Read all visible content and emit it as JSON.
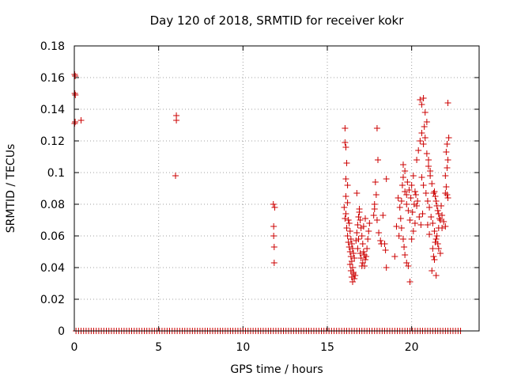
{
  "chart_data": {
    "type": "scatter",
    "title": "Day 120 of 2018, SRMTID for receiver kokr",
    "xlabel": "GPS time / hours",
    "ylabel": "SRMTID / TECUs",
    "xlim": [
      0,
      24
    ],
    "ylim": [
      0,
      0.18
    ],
    "xticks": [
      0,
      5,
      10,
      15,
      20
    ],
    "yticks": [
      0,
      0.02,
      0.04,
      0.06,
      0.08,
      0.1,
      0.12,
      0.14,
      0.16,
      0.18
    ],
    "xtick_labels": [
      "0",
      "5",
      "10",
      "15",
      "20"
    ],
    "ytick_labels": [
      "0",
      "0.02",
      "0.04",
      "0.06",
      "0.08",
      "0.1",
      "0.12",
      "0.14",
      "0.16",
      "0.18"
    ],
    "grid": true,
    "marker": "+",
    "series": [
      {
        "name": "SRMTID",
        "color": "#cc0000",
        "points": [
          [
            0.02,
            0.162
          ],
          [
            0.05,
            0.161
          ],
          [
            0.03,
            0.15
          ],
          [
            0.06,
            0.149
          ],
          [
            0.02,
            0.131
          ],
          [
            0.05,
            0.132
          ],
          [
            0.4,
            0.133
          ],
          [
            6.05,
            0.136
          ],
          [
            6.05,
            0.133
          ],
          [
            6.0,
            0.098
          ],
          [
            11.8,
            0.08
          ],
          [
            11.88,
            0.078
          ],
          [
            11.82,
            0.066
          ],
          [
            11.82,
            0.06
          ],
          [
            11.85,
            0.053
          ],
          [
            11.85,
            0.043
          ],
          [
            16.05,
            0.128
          ],
          [
            16.05,
            0.119
          ],
          [
            16.1,
            0.116
          ],
          [
            16.15,
            0.106
          ],
          [
            16.1,
            0.096
          ],
          [
            16.2,
            0.092
          ],
          [
            16.1,
            0.085
          ],
          [
            16.2,
            0.081
          ],
          [
            16.0,
            0.078
          ],
          [
            16.1,
            0.074
          ],
          [
            16.05,
            0.071
          ],
          [
            16.25,
            0.07
          ],
          [
            16.3,
            0.068
          ],
          [
            16.15,
            0.065
          ],
          [
            16.35,
            0.063
          ],
          [
            16.2,
            0.06
          ],
          [
            16.4,
            0.058
          ],
          [
            16.25,
            0.056
          ],
          [
            16.45,
            0.055
          ],
          [
            16.3,
            0.053
          ],
          [
            16.5,
            0.052
          ],
          [
            16.35,
            0.05
          ],
          [
            16.55,
            0.049
          ],
          [
            16.4,
            0.047
          ],
          [
            16.6,
            0.046
          ],
          [
            16.45,
            0.044
          ],
          [
            16.35,
            0.042
          ],
          [
            16.5,
            0.04
          ],
          [
            16.4,
            0.038
          ],
          [
            16.55,
            0.036
          ],
          [
            16.45,
            0.034
          ],
          [
            16.6,
            0.033
          ],
          [
            16.5,
            0.031
          ],
          [
            16.65,
            0.035
          ],
          [
            16.55,
            0.037
          ],
          [
            16.7,
            0.057
          ],
          [
            16.75,
            0.062
          ],
          [
            16.8,
            0.067
          ],
          [
            16.85,
            0.072
          ],
          [
            16.9,
            0.075
          ],
          [
            16.95,
            0.07
          ],
          [
            17.0,
            0.065
          ],
          [
            17.05,
            0.06
          ],
          [
            17.1,
            0.055
          ],
          [
            17.15,
            0.05
          ],
          [
            17.2,
            0.048
          ],
          [
            17.25,
            0.045
          ],
          [
            17.3,
            0.047
          ],
          [
            17.35,
            0.052
          ],
          [
            17.0,
            0.046
          ],
          [
            17.1,
            0.043
          ],
          [
            17.2,
            0.041
          ],
          [
            16.75,
            0.087
          ],
          [
            16.9,
            0.077
          ],
          [
            17.4,
            0.058
          ],
          [
            17.45,
            0.063
          ],
          [
            17.5,
            0.068
          ],
          [
            16.8,
            0.052
          ],
          [
            16.95,
            0.049
          ],
          [
            17.05,
            0.041
          ],
          [
            16.85,
            0.058
          ],
          [
            17.15,
            0.066
          ],
          [
            17.25,
            0.071
          ],
          [
            17.95,
            0.128
          ],
          [
            18.0,
            0.108
          ],
          [
            17.85,
            0.094
          ],
          [
            17.9,
            0.086
          ],
          [
            17.8,
            0.08
          ],
          [
            17.75,
            0.073
          ],
          [
            17.95,
            0.07
          ],
          [
            18.05,
            0.062
          ],
          [
            18.15,
            0.057
          ],
          [
            18.2,
            0.055
          ],
          [
            17.8,
            0.077
          ],
          [
            18.3,
            0.073
          ],
          [
            18.5,
            0.096
          ],
          [
            18.45,
            0.051
          ],
          [
            18.5,
            0.04
          ],
          [
            18.4,
            0.055
          ],
          [
            19.0,
            0.047
          ],
          [
            19.1,
            0.066
          ],
          [
            19.2,
            0.084
          ],
          [
            19.3,
            0.078
          ],
          [
            19.4,
            0.082
          ],
          [
            19.5,
            0.097
          ],
          [
            19.6,
            0.088
          ],
          [
            19.7,
            0.08
          ],
          [
            19.8,
            0.076
          ],
          [
            19.9,
            0.07
          ],
          [
            20.0,
            0.092
          ],
          [
            20.1,
            0.098
          ],
          [
            20.2,
            0.088
          ],
          [
            20.3,
            0.079
          ],
          [
            19.5,
            0.105
          ],
          [
            19.6,
            0.101
          ],
          [
            19.45,
            0.092
          ],
          [
            19.7,
            0.086
          ],
          [
            19.35,
            0.071
          ],
          [
            19.4,
            0.065
          ],
          [
            19.25,
            0.06
          ],
          [
            19.5,
            0.058
          ],
          [
            19.55,
            0.053
          ],
          [
            19.6,
            0.048
          ],
          [
            19.7,
            0.043
          ],
          [
            19.8,
            0.041
          ],
          [
            19.9,
            0.031
          ],
          [
            20.0,
            0.058
          ],
          [
            20.1,
            0.063
          ],
          [
            20.2,
            0.068
          ],
          [
            20.3,
            0.108
          ],
          [
            20.4,
            0.114
          ],
          [
            20.5,
            0.12
          ],
          [
            20.6,
            0.125
          ],
          [
            20.7,
            0.118
          ],
          [
            20.5,
            0.146
          ],
          [
            20.6,
            0.143
          ],
          [
            20.7,
            0.147
          ],
          [
            20.8,
            0.138
          ],
          [
            20.9,
            0.132
          ],
          [
            20.75,
            0.129
          ],
          [
            20.8,
            0.122
          ],
          [
            20.9,
            0.112
          ],
          [
            21.0,
            0.104
          ],
          [
            21.1,
            0.098
          ],
          [
            21.2,
            0.093
          ],
          [
            21.3,
            0.087
          ],
          [
            21.4,
            0.085
          ],
          [
            21.5,
            0.079
          ],
          [
            21.6,
            0.074
          ],
          [
            21.7,
            0.07
          ],
          [
            20.6,
            0.097
          ],
          [
            20.7,
            0.092
          ],
          [
            20.85,
            0.087
          ],
          [
            20.95,
            0.082
          ],
          [
            21.05,
            0.078
          ],
          [
            21.15,
            0.072
          ],
          [
            21.25,
            0.068
          ],
          [
            21.35,
            0.063
          ],
          [
            21.45,
            0.058
          ],
          [
            21.55,
            0.055
          ],
          [
            21.6,
            0.052
          ],
          [
            21.7,
            0.049
          ],
          [
            21.25,
            0.052
          ],
          [
            21.3,
            0.047
          ],
          [
            21.35,
            0.045
          ],
          [
            21.2,
            0.038
          ],
          [
            21.45,
            0.035
          ],
          [
            21.8,
            0.065
          ],
          [
            21.9,
            0.069
          ],
          [
            22.0,
            0.087
          ],
          [
            22.05,
            0.091
          ],
          [
            22.1,
            0.086
          ],
          [
            22.15,
            0.084
          ],
          [
            22.0,
            0.098
          ],
          [
            22.1,
            0.103
          ],
          [
            22.15,
            0.108
          ],
          [
            22.05,
            0.113
          ],
          [
            22.1,
            0.118
          ],
          [
            22.2,
            0.122
          ],
          [
            22.15,
            0.144
          ],
          [
            22.0,
            0.066
          ],
          [
            21.8,
            0.073
          ],
          [
            21.75,
            0.079
          ],
          [
            20.45,
            0.072
          ],
          [
            20.55,
            0.067
          ],
          [
            20.65,
            0.074
          ],
          [
            20.35,
            0.082
          ],
          [
            20.25,
            0.086
          ],
          [
            20.15,
            0.08
          ],
          [
            20.05,
            0.075
          ],
          [
            19.95,
            0.084
          ],
          [
            19.85,
            0.089
          ],
          [
            19.75,
            0.094
          ],
          [
            21.0,
            0.108
          ],
          [
            21.1,
            0.101
          ],
          [
            20.95,
            0.067
          ],
          [
            21.05,
            0.061
          ],
          [
            21.4,
            0.056
          ],
          [
            21.5,
            0.06
          ],
          [
            21.6,
            0.065
          ],
          [
            21.65,
            0.071
          ],
          [
            21.55,
            0.076
          ],
          [
            21.45,
            0.082
          ],
          [
            21.35,
            0.088
          ]
        ],
        "zero_points_x": [
          0.1,
          0.25,
          0.4,
          0.55,
          0.7,
          0.85,
          1.0,
          1.15,
          1.3,
          1.45,
          1.6,
          1.75,
          1.9,
          2.05,
          2.2,
          2.35,
          2.5,
          2.65,
          2.8,
          2.95,
          3.1,
          3.25,
          3.4,
          3.55,
          3.7,
          3.85,
          4.0,
          4.15,
          4.3,
          4.45,
          4.6,
          4.75,
          4.9,
          5.05,
          5.2,
          5.35,
          5.5,
          5.65,
          5.8,
          5.95,
          6.1,
          6.25,
          6.4,
          6.55,
          6.7,
          6.85,
          7.0,
          7.15,
          7.3,
          7.45,
          7.6,
          7.75,
          7.9,
          8.05,
          8.2,
          8.35,
          8.5,
          8.65,
          8.8,
          8.95,
          9.1,
          9.25,
          9.4,
          9.55,
          9.7,
          9.85,
          10.0,
          10.15,
          10.3,
          10.45,
          10.6,
          10.75,
          10.9,
          11.05,
          11.2,
          11.35,
          11.5,
          11.65,
          11.8,
          11.95,
          12.1,
          12.25,
          12.4,
          12.55,
          12.7,
          12.85,
          13.0,
          13.15,
          13.3,
          13.45,
          13.6,
          13.75,
          13.9,
          14.05,
          14.2,
          14.35,
          14.5,
          14.65,
          14.8,
          14.95,
          15.1,
          15.25,
          15.4,
          15.55,
          15.7,
          15.85,
          16.0,
          16.15,
          16.3,
          16.45,
          16.6,
          16.75,
          16.9,
          17.05,
          17.2,
          17.35,
          17.5,
          17.65,
          17.8,
          17.95,
          18.1,
          18.25,
          18.4,
          18.55,
          18.7,
          18.85,
          19.0,
          19.15,
          19.3,
          19.45,
          19.6,
          19.75,
          19.9,
          20.05,
          20.2,
          20.35,
          20.5,
          20.65,
          20.8,
          20.95,
          21.1,
          21.25,
          21.4,
          21.55,
          21.7,
          21.85,
          22.0,
          22.15,
          22.3,
          22.45,
          22.6,
          22.75,
          22.9
        ]
      }
    ]
  }
}
